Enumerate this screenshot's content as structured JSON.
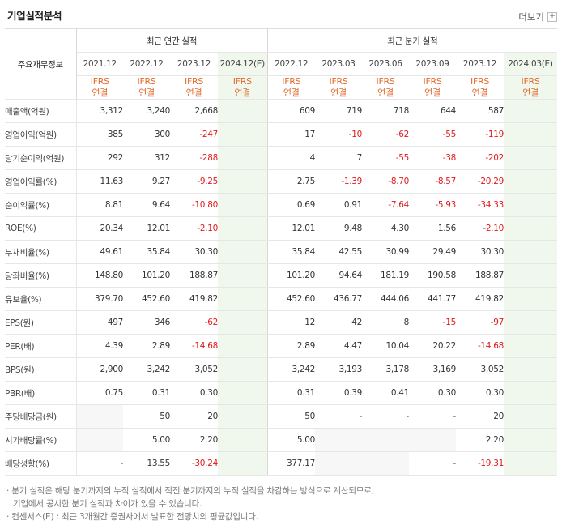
{
  "header": {
    "title": "기업실적분석",
    "more_label": "더보기",
    "more_icon": "plus-icon"
  },
  "table": {
    "row_header_label": "주요재무정보",
    "annual_group_label": "최근 연간 실적",
    "quarter_group_label": "최근 분기 실적",
    "annual_periods": [
      "2021.12",
      "2022.12",
      "2023.12",
      "2024.12(E)"
    ],
    "quarter_periods": [
      "2022.12",
      "2023.03",
      "2023.06",
      "2023.09",
      "2023.12",
      "2024.03(E)"
    ],
    "ifrs_line1": "IFRS",
    "ifrs_line2": "연결",
    "rows": [
      {
        "label": "매출액(억원)",
        "annual": [
          "3,312",
          "3,240",
          "2,668",
          ""
        ],
        "quarter": [
          "609",
          "719",
          "718",
          "644",
          "587",
          ""
        ]
      },
      {
        "label": "영업이익(억원)",
        "annual": [
          "385",
          "300",
          "-247",
          ""
        ],
        "quarter": [
          "17",
          "-10",
          "-62",
          "-55",
          "-119",
          ""
        ]
      },
      {
        "label": "당기순이익(억원)",
        "annual": [
          "292",
          "312",
          "-288",
          ""
        ],
        "quarter": [
          "4",
          "7",
          "-55",
          "-38",
          "-202",
          ""
        ]
      },
      {
        "label": "영업이익률(%)",
        "annual": [
          "11.63",
          "9.27",
          "-9.25",
          ""
        ],
        "quarter": [
          "2.75",
          "-1.39",
          "-8.70",
          "-8.57",
          "-20.29",
          ""
        ]
      },
      {
        "label": "순이익률(%)",
        "annual": [
          "8.81",
          "9.64",
          "-10.80",
          ""
        ],
        "quarter": [
          "0.69",
          "0.91",
          "-7.64",
          "-5.93",
          "-34.33",
          ""
        ]
      },
      {
        "label": "ROE(%)",
        "annual": [
          "20.34",
          "12.01",
          "-2.10",
          ""
        ],
        "quarter": [
          "12.01",
          "9.48",
          "4.30",
          "1.56",
          "-2.10",
          ""
        ]
      },
      {
        "label": "부채비율(%)",
        "annual": [
          "49.61",
          "35.84",
          "30.30",
          ""
        ],
        "quarter": [
          "35.84",
          "42.55",
          "30.99",
          "29.49",
          "30.30",
          ""
        ]
      },
      {
        "label": "당좌비율(%)",
        "annual": [
          "148.80",
          "101.20",
          "188.87",
          ""
        ],
        "quarter": [
          "101.20",
          "94.64",
          "181.19",
          "190.58",
          "188.87",
          ""
        ]
      },
      {
        "label": "유보율(%)",
        "annual": [
          "379.70",
          "452.60",
          "419.82",
          ""
        ],
        "quarter": [
          "452.60",
          "436.77",
          "444.06",
          "441.77",
          "419.82",
          ""
        ]
      },
      {
        "label": "EPS(원)",
        "annual": [
          "497",
          "346",
          "-62",
          ""
        ],
        "quarter": [
          "12",
          "42",
          "8",
          "-15",
          "-97",
          ""
        ]
      },
      {
        "label": "PER(배)",
        "annual": [
          "4.39",
          "2.89",
          "-14.68",
          ""
        ],
        "quarter": [
          "2.89",
          "4.47",
          "10.04",
          "20.22",
          "-14.68",
          ""
        ]
      },
      {
        "label": "BPS(원)",
        "annual": [
          "2,900",
          "3,242",
          "3,052",
          ""
        ],
        "quarter": [
          "3,242",
          "3,193",
          "3,178",
          "3,169",
          "3,052",
          ""
        ]
      },
      {
        "label": "PBR(배)",
        "annual": [
          "0.75",
          "0.31",
          "0.30",
          ""
        ],
        "quarter": [
          "0.31",
          "0.39",
          "0.41",
          "0.30",
          "0.30",
          ""
        ]
      },
      {
        "label": "주당배당금(원)",
        "annual": [
          "",
          "50",
          "20",
          ""
        ],
        "quarter": [
          "50",
          "-",
          "-",
          "-",
          "20",
          ""
        ]
      },
      {
        "label": "시가배당률(%)",
        "annual": [
          "",
          "5.00",
          "2.20",
          ""
        ],
        "quarter": [
          "5.00",
          "",
          "",
          "",
          "2.20",
          ""
        ]
      },
      {
        "label": "배당성향(%)",
        "annual": [
          "-",
          "13.55",
          "-30.24",
          ""
        ],
        "quarter": [
          "377.17",
          "",
          "",
          "-",
          "-19.31",
          ""
        ]
      }
    ]
  },
  "footnotes": {
    "line1": "· 분기 실적은 해당 분기까지의 누적 실적에서 직전 분기까지의 누적 실적을 차감하는 방식으로 계산되므로,",
    "line2": "기업에서 공시한 분기 실적과 차이가 있을 수 있습니다.",
    "line3": "· 컨센서스(E) : 최근 3개월간 증권사에서 발표한 전망치의 평균값입니다."
  },
  "colors": {
    "negative": "#e0191c",
    "ifrs": "#e36a2c",
    "estimate_bg": "#f0f8ee"
  }
}
